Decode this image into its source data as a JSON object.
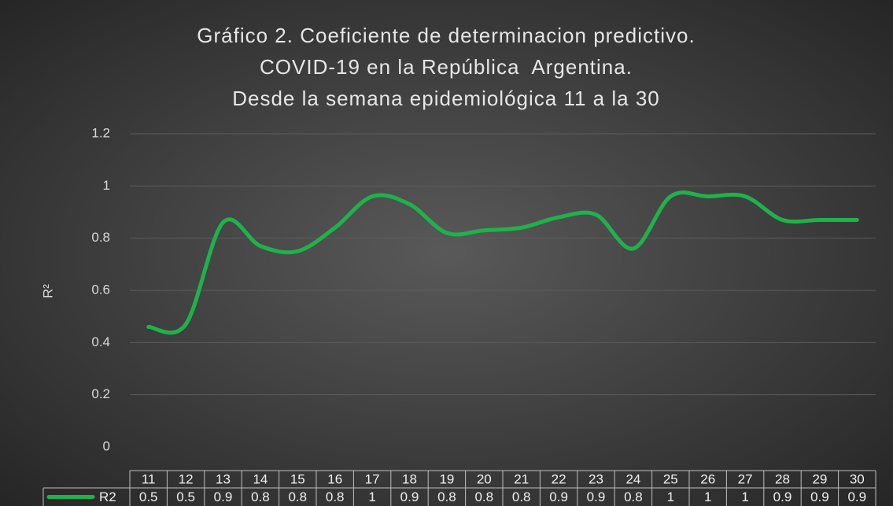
{
  "chart_data": {
    "type": "line",
    "title": [
      "Gráfico 2. Coeficiente de determinacion predictivo.",
      "COVID-19 en la República  Argentina.",
      "Desde la semana epidemiológica 11 a la 30"
    ],
    "y_label": "R²",
    "categories": [
      "11",
      "12",
      "13",
      "14",
      "15",
      "16",
      "17",
      "18",
      "19",
      "20",
      "21",
      "22",
      "23",
      "24",
      "25",
      "26",
      "27",
      "28",
      "29",
      "30"
    ],
    "series": [
      {
        "name": "R2",
        "color": "#1fb24a",
        "values": [
          0.46,
          0.47,
          0.86,
          0.77,
          0.75,
          0.84,
          0.96,
          0.93,
          0.82,
          0.83,
          0.84,
          0.88,
          0.89,
          0.76,
          0.96,
          0.96,
          0.96,
          0.87,
          0.87,
          0.87
        ],
        "value_labels": [
          "0.5",
          "0.5",
          "0.9",
          "0.8",
          "0.8",
          "0.8",
          "1",
          "0.9",
          "0.8",
          "0.8",
          "0.8",
          "0.9",
          "0.9",
          "0.8",
          "1",
          "1",
          "1",
          "0.9",
          "0.9",
          "0.9"
        ]
      }
    ],
    "ylim": [
      0,
      1.2
    ],
    "yticks": [
      0,
      0.2,
      0.4,
      0.6,
      0.8,
      1,
      1.2
    ],
    "grid": true,
    "smooth": true
  }
}
